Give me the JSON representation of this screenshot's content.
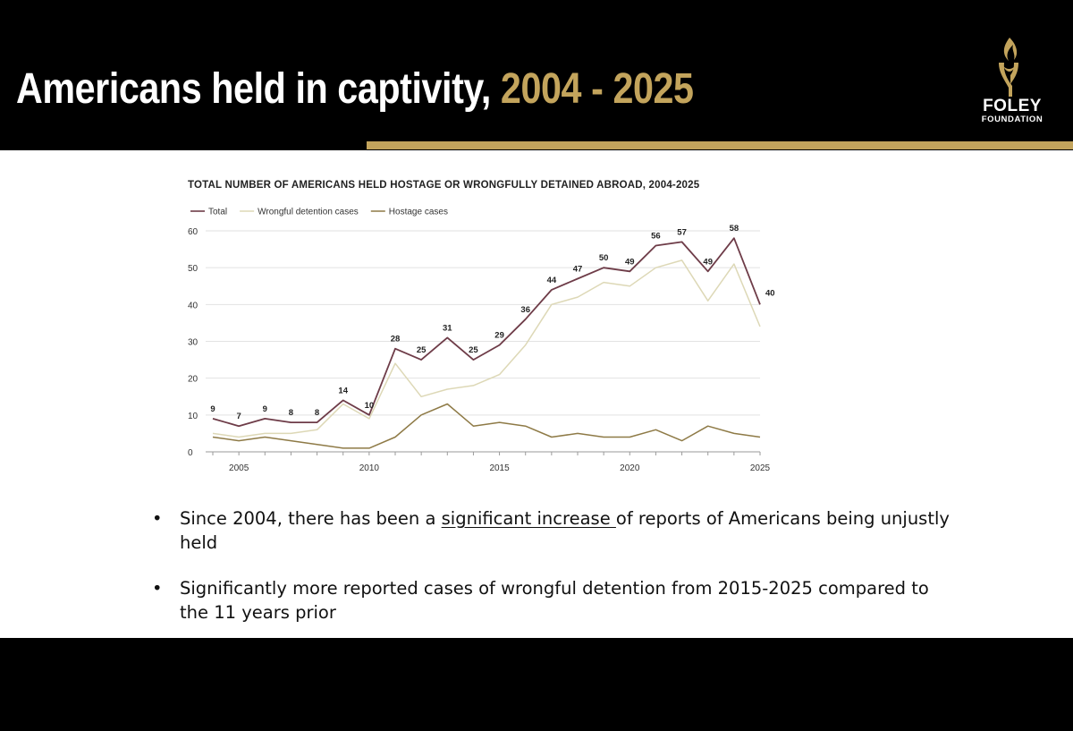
{
  "slide": {
    "title_main": "Americans held in captivity, ",
    "title_years": "2004 - 2025",
    "logo": {
      "line1": "FOLEY",
      "line2": "FOUNDATION"
    },
    "bullets": [
      {
        "before": "Since 2004, there has been a ",
        "emphasis": "significant increase ",
        "after": "of reports of Americans being unjustly held"
      },
      {
        "before": "Significantly more reported cases of wrongful detention from 2015-2025 compared to the 11 years prior",
        "emphasis": "",
        "after": ""
      }
    ],
    "bullet_glyph": "•"
  },
  "colors": {
    "accent": "#c3a45c",
    "total": "#6e3c48",
    "wrongful": "#ddd8b6",
    "hostage": "#8e7a46",
    "grid": "#e2e2e2",
    "text": "#222222"
  },
  "chart_data": {
    "type": "line",
    "title": "TOTAL NUMBER OF AMERICANS HELD HOSTAGE OR WRONGFULLY DETAINED ABROAD, 2004-2025",
    "x": [
      2004,
      2005,
      2006,
      2007,
      2008,
      2009,
      2010,
      2011,
      2012,
      2013,
      2014,
      2015,
      2016,
      2017,
      2018,
      2019,
      2020,
      2021,
      2022,
      2023,
      2024,
      2025
    ],
    "xticks": [
      2005,
      2010,
      2015,
      2020,
      2025
    ],
    "yticks": [
      0,
      10,
      20,
      30,
      40,
      50,
      60
    ],
    "ylim": [
      0,
      60
    ],
    "xlim": [
      2004,
      2025
    ],
    "grid": true,
    "legend_position": "top-left",
    "series": [
      {
        "name": "Total",
        "key": "total",
        "labeled": true,
        "values": [
          9,
          7,
          9,
          8,
          8,
          14,
          10,
          28,
          25,
          31,
          25,
          29,
          36,
          44,
          47,
          50,
          49,
          56,
          57,
          49,
          58,
          40
        ]
      },
      {
        "name": "Wrongful detention cases",
        "key": "wrongful",
        "labeled": false,
        "values": [
          5,
          4,
          5,
          5,
          6,
          13,
          9,
          24,
          15,
          17,
          18,
          21,
          29,
          40,
          42,
          46,
          45,
          50,
          52,
          41,
          51,
          34
        ]
      },
      {
        "name": "Hostage cases",
        "key": "hostage",
        "labeled": false,
        "values": [
          4,
          3,
          4,
          3,
          2,
          1,
          1,
          4,
          10,
          13,
          7,
          8,
          7,
          4,
          5,
          4,
          4,
          6,
          3,
          7,
          5,
          4
        ]
      }
    ]
  }
}
